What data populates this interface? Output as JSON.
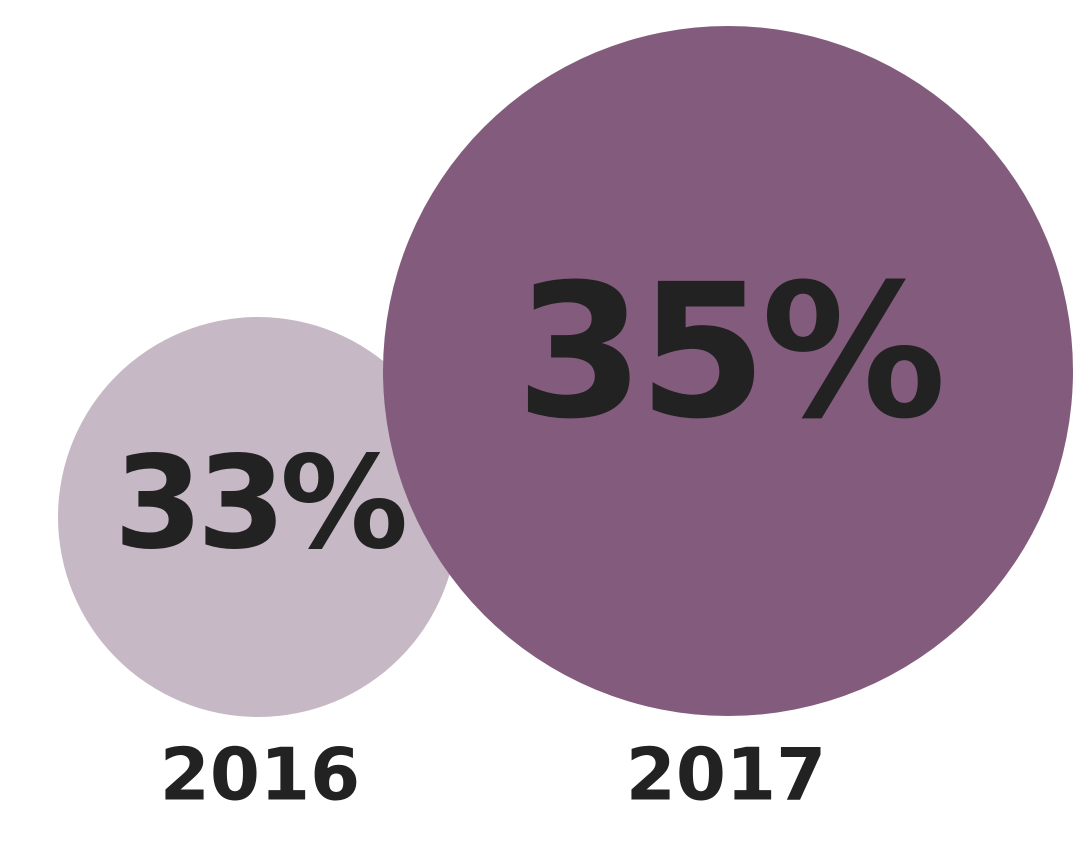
{
  "chart_data": {
    "type": "bubble",
    "categories": [
      "2016",
      "2017"
    ],
    "values": [
      33,
      35
    ],
    "value_labels": [
      "33%",
      "35%"
    ],
    "colors": [
      "#c6b8c4",
      "#835b7c"
    ]
  }
}
